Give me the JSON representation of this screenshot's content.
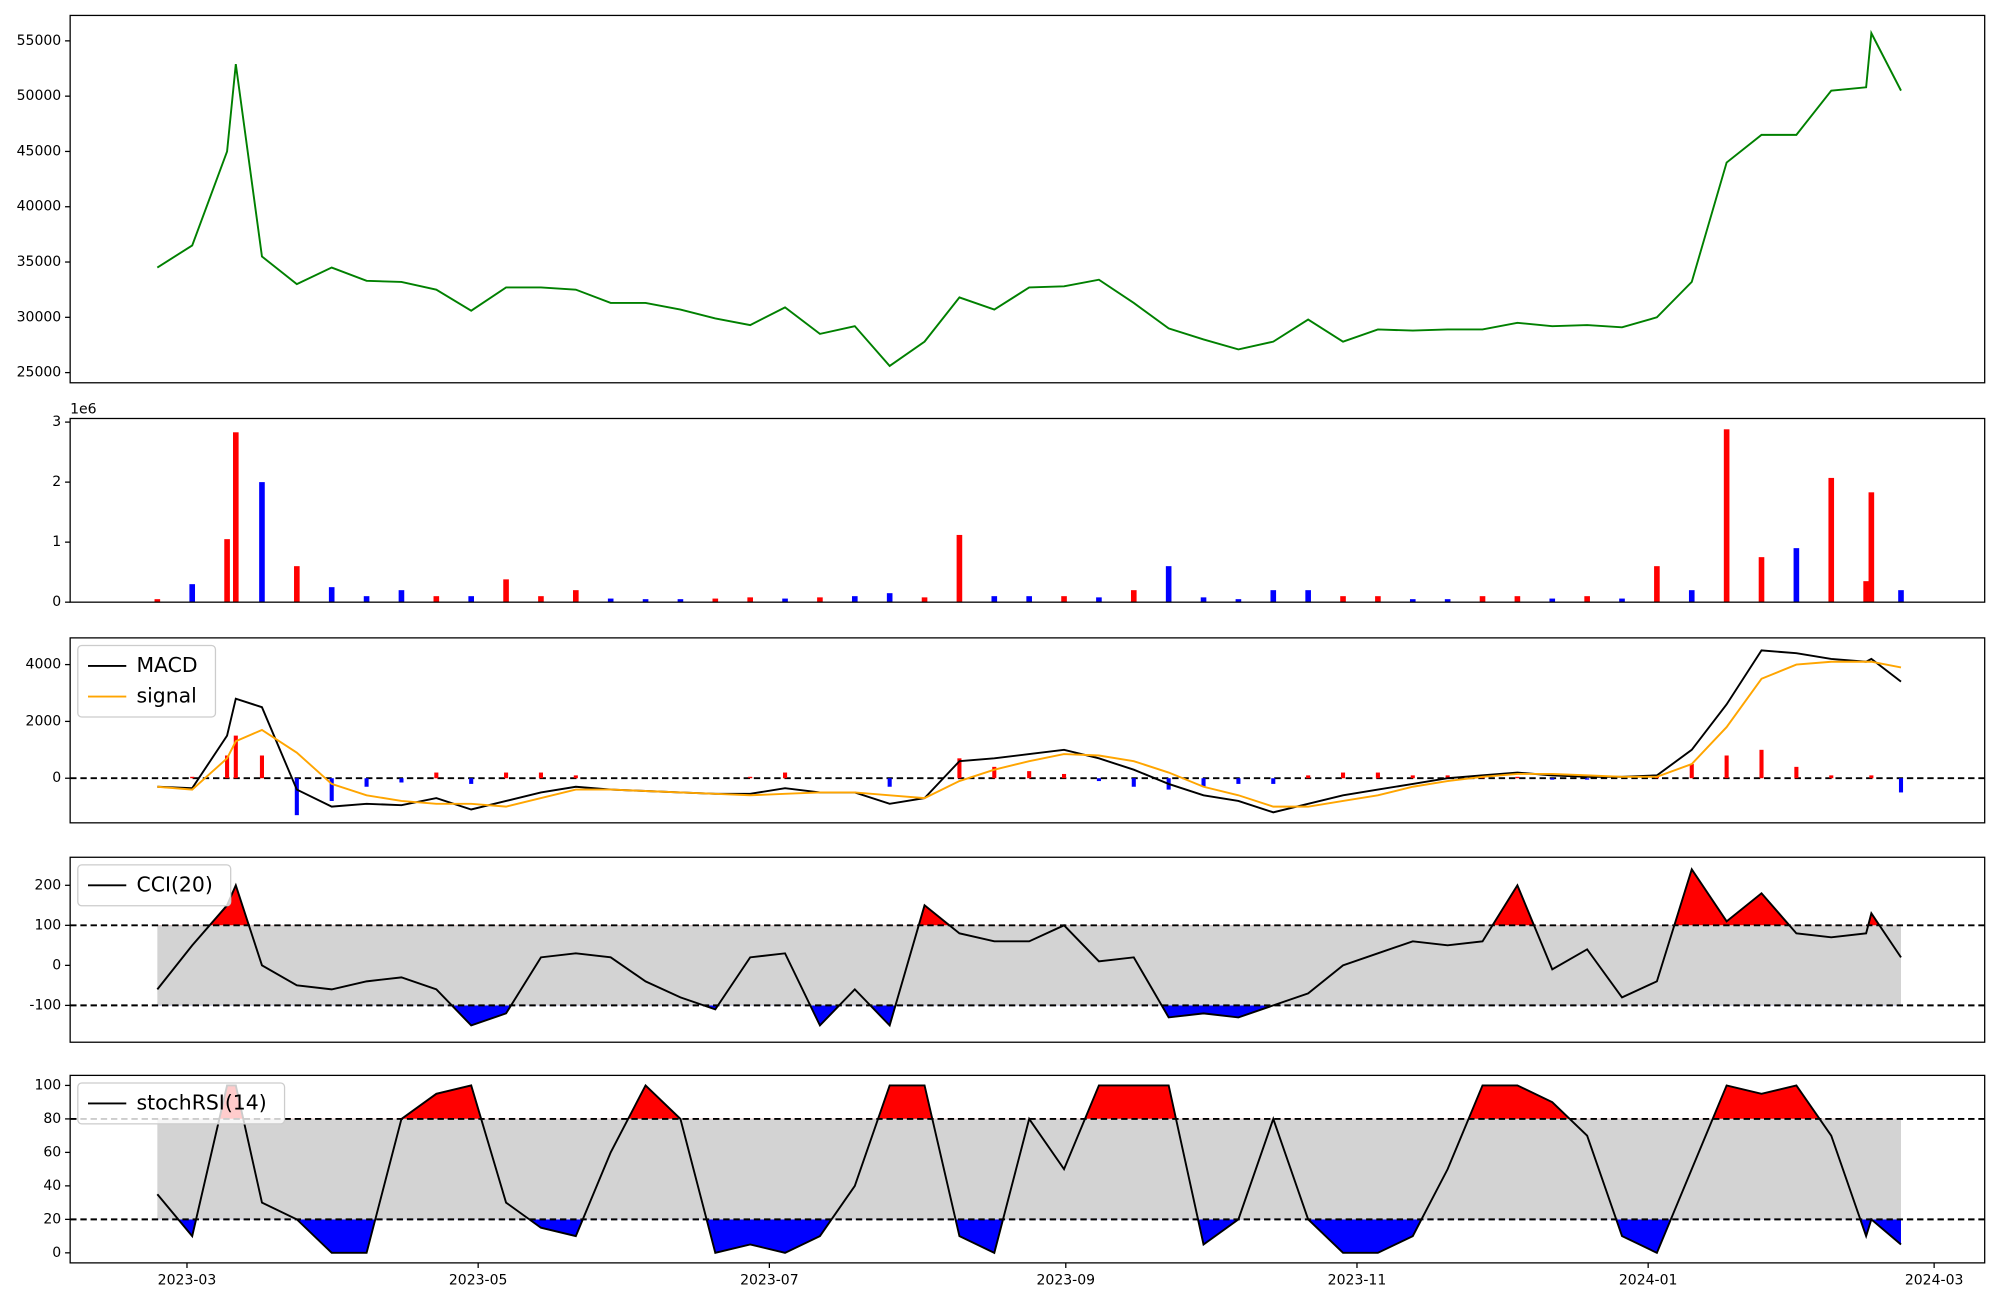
{
  "chart_data": [
    {
      "type": "line",
      "x": [
        2023.145,
        2023.165,
        2023.185,
        2023.19,
        2023.205,
        2023.225,
        2023.245,
        2023.265,
        2023.285,
        2023.305,
        2023.325,
        2023.345,
        2023.365,
        2023.385,
        2023.405,
        2023.425,
        2023.445,
        2023.465,
        2023.485,
        2023.505,
        2023.525,
        2023.545,
        2023.565,
        2023.585,
        2023.605,
        2023.625,
        2023.645,
        2023.665,
        2023.685,
        2023.705,
        2023.725,
        2023.745,
        2023.765,
        2023.785,
        2023.805,
        2023.825,
        2023.845,
        2023.865,
        2023.885,
        2023.905,
        2023.925,
        2023.945,
        2023.965,
        2023.985,
        2024.005,
        2024.025,
        2024.045,
        2024.065,
        2024.085,
        2024.105,
        2024.125,
        2024.128,
        2024.145
      ],
      "xlim": [
        2023.095,
        2024.193
      ],
      "series": [
        {
          "color": "green",
          "values": [
            34500,
            36500,
            45000,
            52900,
            35500,
            33000,
            34500,
            33300,
            33200,
            32500,
            30600,
            32700,
            32700,
            32500,
            31300,
            31300,
            30700,
            29900,
            29300,
            30900,
            28500,
            29200,
            25600,
            27800,
            31800,
            30700,
            32700,
            32800,
            33400,
            31300,
            29000,
            28000,
            27100,
            27800,
            29800,
            27800,
            28900,
            28800,
            28900,
            28900,
            29500,
            29200,
            29300,
            29100,
            30000,
            33200,
            44000,
            46500,
            46500,
            50500,
            50800,
            55700,
            50500
          ]
        }
      ],
      "ylim": [
        24080,
        57300
      ],
      "yticks": [
        25000,
        30000,
        35000,
        40000,
        45000,
        50000,
        55000
      ]
    },
    {
      "type": "bar",
      "x": [
        2023.145,
        2023.165,
        2023.185,
        2023.19,
        2023.205,
        2023.225,
        2023.245,
        2023.265,
        2023.285,
        2023.305,
        2023.325,
        2023.345,
        2023.365,
        2023.385,
        2023.405,
        2023.425,
        2023.445,
        2023.465,
        2023.485,
        2023.505,
        2023.525,
        2023.545,
        2023.565,
        2023.585,
        2023.605,
        2023.625,
        2023.645,
        2023.665,
        2023.685,
        2023.705,
        2023.725,
        2023.745,
        2023.765,
        2023.785,
        2023.805,
        2023.825,
        2023.845,
        2023.865,
        2023.885,
        2023.905,
        2023.925,
        2023.945,
        2023.965,
        2023.985,
        2024.005,
        2024.025,
        2024.045,
        2024.065,
        2024.085,
        2024.105,
        2024.125,
        2024.128,
        2024.145
      ],
      "xlim": [
        2023.095,
        2024.193
      ],
      "values": [
        0.05,
        0.3,
        1.05,
        2.83,
        2.0,
        0.6,
        0.25,
        0.1,
        0.2,
        0.1,
        0.1,
        0.38,
        0.1,
        0.2,
        0.06,
        0.05,
        0.05,
        0.06,
        0.08,
        0.06,
        0.08,
        0.1,
        0.15,
        0.08,
        1.12,
        0.1,
        0.1,
        0.1,
        0.08,
        0.2,
        0.6,
        0.08,
        0.05,
        0.2,
        0.2,
        0.1,
        0.1,
        0.05,
        0.05,
        0.1,
        0.1,
        0.06,
        0.1,
        0.06,
        0.6,
        0.2,
        2.88,
        0.75,
        0.9,
        2.07,
        0.35,
        1.83,
        0.2
      ],
      "bar_colors": [
        "red",
        "blue",
        "red",
        "red",
        "blue",
        "red",
        "blue",
        "blue",
        "blue",
        "red",
        "blue",
        "red",
        "red",
        "red",
        "blue",
        "blue",
        "blue",
        "red",
        "red",
        "blue",
        "red",
        "blue",
        "blue",
        "red",
        "red",
        "blue",
        "blue",
        "red",
        "blue",
        "red",
        "blue",
        "blue",
        "blue",
        "blue",
        "blue",
        "red",
        "red",
        "blue",
        "blue",
        "red",
        "red",
        "blue",
        "red",
        "blue",
        "red",
        "blue",
        "red",
        "red",
        "blue",
        "red",
        "red",
        "red",
        "blue"
      ],
      "offset_label": "1e6",
      "ylim": [
        0,
        3.06
      ],
      "yticks": [
        0,
        1,
        2,
        3
      ]
    },
    {
      "type": "macd",
      "x": [
        2023.145,
        2023.165,
        2023.185,
        2023.19,
        2023.205,
        2023.225,
        2023.245,
        2023.265,
        2023.285,
        2023.305,
        2023.325,
        2023.345,
        2023.365,
        2023.385,
        2023.405,
        2023.425,
        2023.445,
        2023.465,
        2023.485,
        2023.505,
        2023.525,
        2023.545,
        2023.565,
        2023.585,
        2023.605,
        2023.625,
        2023.645,
        2023.665,
        2023.685,
        2023.705,
        2023.725,
        2023.745,
        2023.765,
        2023.785,
        2023.805,
        2023.825,
        2023.845,
        2023.865,
        2023.885,
        2023.905,
        2023.925,
        2023.945,
        2023.965,
        2023.985,
        2024.005,
        2024.025,
        2024.045,
        2024.065,
        2024.085,
        2024.105,
        2024.125,
        2024.128,
        2024.145
      ],
      "xlim": [
        2023.095,
        2024.193
      ],
      "series": [
        {
          "name": "MACD",
          "color": "black",
          "values": [
            -300,
            -350,
            1500,
            2800,
            2500,
            -400,
            -1000,
            -900,
            -950,
            -700,
            -1100,
            -800,
            -500,
            -300,
            -400,
            -450,
            -500,
            -550,
            -550,
            -350,
            -500,
            -500,
            -900,
            -700,
            600,
            700,
            850,
            1000,
            700,
            300,
            -200,
            -600,
            -800,
            -1200,
            -900,
            -600,
            -400,
            -200,
            0,
            100,
            200,
            100,
            50,
            50,
            100,
            1000,
            2600,
            4500,
            4400,
            4200,
            4100,
            4200,
            3400
          ]
        },
        {
          "name": "signal",
          "color": "orange",
          "values": [
            -300,
            -400,
            700,
            1300,
            1700,
            900,
            -200,
            -600,
            -800,
            -900,
            -900,
            -1000,
            -700,
            -400,
            -400,
            -450,
            -500,
            -550,
            -600,
            -550,
            -500,
            -500,
            -600,
            -700,
            -100,
            300,
            600,
            850,
            800,
            600,
            200,
            -300,
            -600,
            -1000,
            -1000,
            -800,
            -600,
            -300,
            -100,
            50,
            150,
            150,
            100,
            50,
            50,
            500,
            1800,
            3500,
            4000,
            4100,
            4100,
            4100,
            3900
          ]
        }
      ],
      "histogram": {
        "up_color": "red",
        "down_color": "blue",
        "values": [
          0,
          50,
          800,
          1500,
          800,
          -1300,
          -800,
          -300,
          -150,
          200,
          -200,
          200,
          200,
          100,
          0,
          0,
          0,
          0,
          50,
          200,
          0,
          0,
          -300,
          0,
          700,
          400,
          250,
          150,
          -100,
          -300,
          -400,
          -300,
          -200,
          -200,
          100,
          200,
          200,
          100,
          100,
          50,
          50,
          -50,
          -50,
          0,
          50,
          500,
          800,
          1000,
          400,
          100,
          0,
          100,
          -500
        ]
      },
      "hline": 0,
      "legend": "upper left",
      "ylim": [
        -1570,
        4940
      ],
      "yticks": [
        0,
        2000,
        4000
      ]
    },
    {
      "type": "oscillator",
      "x": [
        2023.145,
        2023.165,
        2023.185,
        2023.19,
        2023.205,
        2023.225,
        2023.245,
        2023.265,
        2023.285,
        2023.305,
        2023.325,
        2023.345,
        2023.365,
        2023.385,
        2023.405,
        2023.425,
        2023.445,
        2023.465,
        2023.485,
        2023.505,
        2023.525,
        2023.545,
        2023.565,
        2023.585,
        2023.605,
        2023.625,
        2023.645,
        2023.665,
        2023.685,
        2023.705,
        2023.725,
        2023.745,
        2023.765,
        2023.785,
        2023.805,
        2023.825,
        2023.845,
        2023.865,
        2023.885,
        2023.905,
        2023.925,
        2023.945,
        2023.965,
        2023.985,
        2024.005,
        2024.025,
        2024.045,
        2024.065,
        2024.085,
        2024.105,
        2024.125,
        2024.128,
        2024.145
      ],
      "xlim": [
        2023.095,
        2024.193
      ],
      "series": [
        {
          "name": "CCI(20)",
          "color": "black",
          "values": [
            -60,
            50,
            150,
            200,
            0,
            -50,
            -60,
            -40,
            -30,
            -60,
            -150,
            -120,
            20,
            30,
            20,
            -40,
            -80,
            -110,
            20,
            30,
            -150,
            -60,
            -150,
            150,
            80,
            60,
            60,
            100,
            10,
            20,
            -130,
            -120,
            -130,
            -100,
            -70,
            0,
            30,
            60,
            50,
            60,
            200,
            -10,
            40,
            -80,
            -40,
            240,
            110,
            180,
            80,
            70,
            80,
            130,
            20
          ]
        }
      ],
      "upper": 100,
      "lower": -100,
      "band_color": "lightgray",
      "upper_color": "red",
      "lower_color": "blue",
      "legend": "upper left",
      "ylim": [
        -192,
        270
      ],
      "yticks": [
        -100,
        0,
        100,
        200
      ]
    },
    {
      "type": "oscillator",
      "x": [
        2023.145,
        2023.165,
        2023.185,
        2023.19,
        2023.205,
        2023.225,
        2023.245,
        2023.265,
        2023.285,
        2023.305,
        2023.325,
        2023.345,
        2023.365,
        2023.385,
        2023.405,
        2023.425,
        2023.445,
        2023.465,
        2023.485,
        2023.505,
        2023.525,
        2023.545,
        2023.565,
        2023.585,
        2023.605,
        2023.625,
        2023.645,
        2023.665,
        2023.685,
        2023.705,
        2023.725,
        2023.745,
        2023.765,
        2023.785,
        2023.805,
        2023.825,
        2023.845,
        2023.865,
        2023.885,
        2023.905,
        2023.925,
        2023.945,
        2023.965,
        2023.985,
        2024.005,
        2024.025,
        2024.045,
        2024.065,
        2024.085,
        2024.105,
        2024.125,
        2024.128,
        2024.145
      ],
      "xlim": [
        2023.095,
        2024.193
      ],
      "xticks": [
        {
          "value": 2023.162,
          "label": "2023-03"
        },
        {
          "value": 2023.329,
          "label": "2023-05"
        },
        {
          "value": 2023.496,
          "label": "2023-07"
        },
        {
          "value": 2023.666,
          "label": "2023-09"
        },
        {
          "value": 2023.833,
          "label": "2023-11"
        },
        {
          "value": 2024.0,
          "label": "2024-01"
        },
        {
          "value": 2024.164,
          "label": "2024-03"
        }
      ],
      "series": [
        {
          "name": "stochRSI(14)",
          "color": "black",
          "values": [
            35,
            10,
            100,
            100,
            30,
            20,
            0,
            0,
            80,
            95,
            100,
            30,
            15,
            10,
            60,
            100,
            80,
            0,
            5,
            0,
            10,
            40,
            100,
            100,
            10,
            0,
            80,
            50,
            100,
            100,
            100,
            5,
            20,
            80,
            20,
            0,
            0,
            10,
            50,
            100,
            100,
            90,
            70,
            10,
            0,
            50,
            100,
            95,
            100,
            70,
            10,
            20,
            5
          ]
        }
      ],
      "upper": 80,
      "lower": 20,
      "band_color": "lightgray",
      "upper_color": "red",
      "lower_color": "blue",
      "legend": "upper left",
      "ylim": [
        -6,
        106
      ],
      "yticks": [
        0,
        20,
        40,
        60,
        80,
        100
      ]
    }
  ]
}
